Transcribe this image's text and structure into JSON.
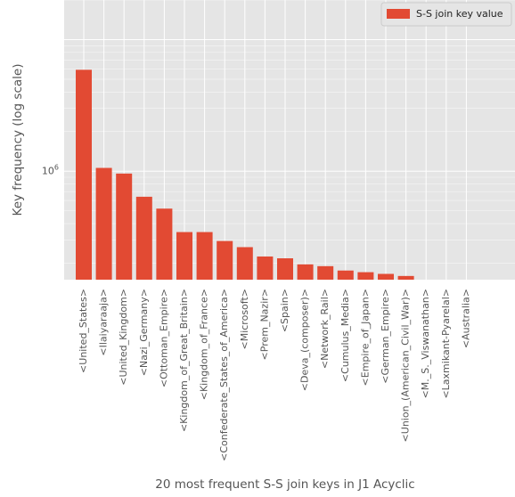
{
  "chart_data": {
    "type": "bar",
    "yscale": "log",
    "grid": true,
    "legend_position": "top-right",
    "xlabel": "20 most frequent S-S join keys in J1 Acyclic",
    "ylabel": "Key frequency (log scale)",
    "ytick": {
      "value": 1000000,
      "label_base": "10",
      "label_exp": "6"
    },
    "ylim": [
      150000,
      20000000
    ],
    "series": [
      {
        "name": "S-S join key value",
        "color": "#E24A33",
        "values": [
          5900000,
          1060000,
          960000,
          640000,
          520000,
          345000,
          345000,
          295000,
          265000,
          225000,
          218000,
          196000,
          190000,
          176000,
          171000,
          166000,
          160000,
          150000,
          150000,
          148000
        ]
      }
    ],
    "categories": [
      "<United_States>",
      "<Ilaiyaraaja>",
      "<United_Kingdom>",
      "<Nazi_Germany>",
      "<Ottoman_Empire>",
      "<Kingdom_of_Great_Britain>",
      "<Kingdom_of_France>",
      "<Confederate_States_of_America>",
      "<Microsoft>",
      "<Prem_Nazir>",
      "<Spain>",
      "<Deva_(composer)>",
      "<Network_Rail>",
      "<Cumulus_Media>",
      "<Empire_of_Japan>",
      "<German_Empire>",
      "<Union_(American_Civil_War)>",
      "<M._S._Viswanathan>",
      "<Laxmikant-Pyarelal>",
      "<Australia>"
    ]
  }
}
